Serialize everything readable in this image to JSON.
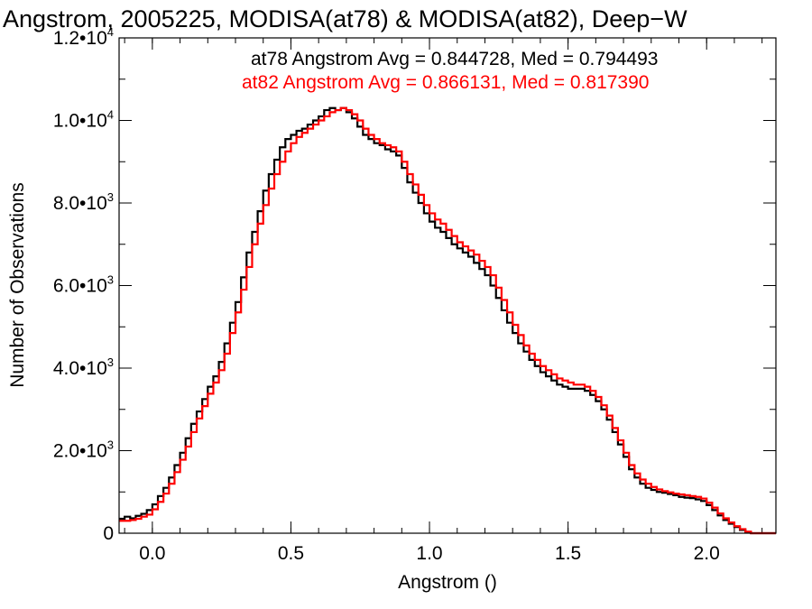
{
  "chart_data": {
    "type": "line",
    "title": "Angstrom, 2005225, MODISA(at78) & MODISA(at82), Deep−W",
    "xlabel": "Angstrom ()",
    "ylabel": "Number of Observations",
    "xlim": [
      -0.12,
      2.25
    ],
    "ylim": [
      0,
      12000
    ],
    "x_ticks": [
      {
        "value": 0.0,
        "label": "0.0"
      },
      {
        "value": 0.5,
        "label": "0.5"
      },
      {
        "value": 1.0,
        "label": "1.0"
      },
      {
        "value": 1.5,
        "label": "1.5"
      },
      {
        "value": 2.0,
        "label": "2.0"
      }
    ],
    "y_ticks": [
      {
        "value": 0,
        "label": "0",
        "exp": ""
      },
      {
        "value": 2000,
        "label": "2.0•10",
        "exp": "3"
      },
      {
        "value": 4000,
        "label": "4.0•10",
        "exp": "3"
      },
      {
        "value": 6000,
        "label": "6.0•10",
        "exp": "3"
      },
      {
        "value": 8000,
        "label": "8.0•10",
        "exp": "3"
      },
      {
        "value": 10000,
        "label": "1.0•10",
        "exp": "4"
      },
      {
        "value": 12000,
        "label": "1.2•10",
        "exp": "4"
      }
    ],
    "x_minor_step": 0.1,
    "y_minor_step": 1000,
    "annotations": [
      {
        "text": "at78 Angstrom Avg = 0.844728, Med = 0.794493",
        "color": "#000000"
      },
      {
        "text": "at82 Angstrom Avg = 0.866131, Med = 0.817390",
        "color": "#ff0000"
      }
    ],
    "series": [
      {
        "color": "#000000",
        "points": [
          [
            -0.12,
            350
          ],
          [
            -0.1,
            400
          ],
          [
            -0.08,
            360
          ],
          [
            -0.06,
            420
          ],
          [
            -0.04,
            470
          ],
          [
            -0.02,
            560
          ],
          [
            0.0,
            700
          ],
          [
            0.02,
            900
          ],
          [
            0.04,
            1100
          ],
          [
            0.06,
            1350
          ],
          [
            0.08,
            1650
          ],
          [
            0.1,
            1950
          ],
          [
            0.12,
            2300
          ],
          [
            0.14,
            2650
          ],
          [
            0.16,
            2950
          ],
          [
            0.18,
            3250
          ],
          [
            0.2,
            3550
          ],
          [
            0.22,
            3800
          ],
          [
            0.24,
            4150
          ],
          [
            0.26,
            4600
          ],
          [
            0.28,
            5100
          ],
          [
            0.3,
            5600
          ],
          [
            0.32,
            6200
          ],
          [
            0.34,
            6800
          ],
          [
            0.36,
            7300
          ],
          [
            0.38,
            7800
          ],
          [
            0.4,
            8300
          ],
          [
            0.42,
            8700
          ],
          [
            0.44,
            9050
          ],
          [
            0.46,
            9350
          ],
          [
            0.48,
            9550
          ],
          [
            0.5,
            9650
          ],
          [
            0.52,
            9750
          ],
          [
            0.54,
            9800
          ],
          [
            0.56,
            9900
          ],
          [
            0.58,
            10000
          ],
          [
            0.6,
            10100
          ],
          [
            0.62,
            10250
          ],
          [
            0.64,
            10300
          ],
          [
            0.66,
            10250
          ],
          [
            0.68,
            10300
          ],
          [
            0.7,
            10200
          ],
          [
            0.72,
            10050
          ],
          [
            0.74,
            9850
          ],
          [
            0.76,
            9650
          ],
          [
            0.78,
            9550
          ],
          [
            0.8,
            9450
          ],
          [
            0.82,
            9400
          ],
          [
            0.84,
            9300
          ],
          [
            0.86,
            9250
          ],
          [
            0.88,
            9150
          ],
          [
            0.9,
            8850
          ],
          [
            0.92,
            8500
          ],
          [
            0.94,
            8250
          ],
          [
            0.96,
            8000
          ],
          [
            0.98,
            7750
          ],
          [
            1.0,
            7550
          ],
          [
            1.02,
            7400
          ],
          [
            1.04,
            7300
          ],
          [
            1.06,
            7150
          ],
          [
            1.08,
            7000
          ],
          [
            1.1,
            6900
          ],
          [
            1.12,
            6800
          ],
          [
            1.14,
            6700
          ],
          [
            1.16,
            6550
          ],
          [
            1.18,
            6400
          ],
          [
            1.2,
            6250
          ],
          [
            1.22,
            6000
          ],
          [
            1.24,
            5700
          ],
          [
            1.26,
            5400
          ],
          [
            1.28,
            5100
          ],
          [
            1.3,
            4850
          ],
          [
            1.32,
            4600
          ],
          [
            1.34,
            4400
          ],
          [
            1.36,
            4200
          ],
          [
            1.38,
            4050
          ],
          [
            1.4,
            3900
          ],
          [
            1.42,
            3800
          ],
          [
            1.44,
            3700
          ],
          [
            1.46,
            3600
          ],
          [
            1.48,
            3550
          ],
          [
            1.5,
            3500
          ],
          [
            1.52,
            3500
          ],
          [
            1.54,
            3500
          ],
          [
            1.56,
            3450
          ],
          [
            1.58,
            3350
          ],
          [
            1.6,
            3200
          ],
          [
            1.62,
            3000
          ],
          [
            1.64,
            2750
          ],
          [
            1.66,
            2450
          ],
          [
            1.68,
            2150
          ],
          [
            1.7,
            1850
          ],
          [
            1.72,
            1550
          ],
          [
            1.74,
            1350
          ],
          [
            1.76,
            1200
          ],
          [
            1.78,
            1100
          ],
          [
            1.8,
            1050
          ],
          [
            1.82,
            1000
          ],
          [
            1.84,
            980
          ],
          [
            1.86,
            950
          ],
          [
            1.88,
            920
          ],
          [
            1.9,
            880
          ],
          [
            1.92,
            860
          ],
          [
            1.94,
            850
          ],
          [
            1.96,
            820
          ],
          [
            1.98,
            780
          ],
          [
            2.0,
            680
          ],
          [
            2.02,
            560
          ],
          [
            2.04,
            430
          ],
          [
            2.06,
            320
          ],
          [
            2.08,
            230
          ],
          [
            2.1,
            150
          ],
          [
            2.12,
            80
          ],
          [
            2.14,
            20
          ],
          [
            2.16,
            0
          ],
          [
            2.25,
            0
          ]
        ]
      },
      {
        "color": "#ff0000",
        "points": [
          [
            -0.12,
            300
          ],
          [
            -0.1,
            300
          ],
          [
            -0.08,
            320
          ],
          [
            -0.06,
            350
          ],
          [
            -0.04,
            400
          ],
          [
            -0.02,
            450
          ],
          [
            0.0,
            580
          ],
          [
            0.02,
            760
          ],
          [
            0.04,
            960
          ],
          [
            0.06,
            1200
          ],
          [
            0.08,
            1480
          ],
          [
            0.1,
            1780
          ],
          [
            0.12,
            2100
          ],
          [
            0.14,
            2450
          ],
          [
            0.16,
            2780
          ],
          [
            0.18,
            3080
          ],
          [
            0.2,
            3380
          ],
          [
            0.22,
            3650
          ],
          [
            0.24,
            3950
          ],
          [
            0.26,
            4350
          ],
          [
            0.28,
            4850
          ],
          [
            0.3,
            5350
          ],
          [
            0.32,
            5900
          ],
          [
            0.34,
            6450
          ],
          [
            0.36,
            7000
          ],
          [
            0.38,
            7500
          ],
          [
            0.4,
            7950
          ],
          [
            0.42,
            8350
          ],
          [
            0.44,
            8700
          ],
          [
            0.46,
            9000
          ],
          [
            0.48,
            9250
          ],
          [
            0.5,
            9450
          ],
          [
            0.52,
            9600
          ],
          [
            0.54,
            9700
          ],
          [
            0.56,
            9800
          ],
          [
            0.58,
            9900
          ],
          [
            0.6,
            10000
          ],
          [
            0.62,
            10100
          ],
          [
            0.64,
            10200
          ],
          [
            0.66,
            10250
          ],
          [
            0.68,
            10300
          ],
          [
            0.7,
            10250
          ],
          [
            0.72,
            10150
          ],
          [
            0.74,
            10000
          ],
          [
            0.76,
            9800
          ],
          [
            0.78,
            9650
          ],
          [
            0.8,
            9550
          ],
          [
            0.82,
            9450
          ],
          [
            0.84,
            9400
          ],
          [
            0.86,
            9350
          ],
          [
            0.88,
            9250
          ],
          [
            0.9,
            9000
          ],
          [
            0.92,
            8700
          ],
          [
            0.94,
            8450
          ],
          [
            0.96,
            8200
          ],
          [
            0.98,
            7950
          ],
          [
            1.0,
            7750
          ],
          [
            1.02,
            7600
          ],
          [
            1.04,
            7500
          ],
          [
            1.06,
            7350
          ],
          [
            1.08,
            7200
          ],
          [
            1.1,
            7050
          ],
          [
            1.12,
            6950
          ],
          [
            1.14,
            6850
          ],
          [
            1.16,
            6750
          ],
          [
            1.18,
            6600
          ],
          [
            1.2,
            6450
          ],
          [
            1.22,
            6250
          ],
          [
            1.24,
            5950
          ],
          [
            1.26,
            5650
          ],
          [
            1.28,
            5350
          ],
          [
            1.3,
            5050
          ],
          [
            1.32,
            4800
          ],
          [
            1.34,
            4550
          ],
          [
            1.36,
            4350
          ],
          [
            1.38,
            4200
          ],
          [
            1.4,
            4050
          ],
          [
            1.42,
            3950
          ],
          [
            1.44,
            3850
          ],
          [
            1.46,
            3750
          ],
          [
            1.48,
            3700
          ],
          [
            1.5,
            3650
          ],
          [
            1.52,
            3600
          ],
          [
            1.54,
            3600
          ],
          [
            1.56,
            3550
          ],
          [
            1.58,
            3450
          ],
          [
            1.6,
            3300
          ],
          [
            1.62,
            3100
          ],
          [
            1.64,
            2850
          ],
          [
            1.66,
            2550
          ],
          [
            1.68,
            2250
          ],
          [
            1.7,
            1950
          ],
          [
            1.72,
            1650
          ],
          [
            1.74,
            1450
          ],
          [
            1.76,
            1300
          ],
          [
            1.78,
            1200
          ],
          [
            1.8,
            1120
          ],
          [
            1.82,
            1060
          ],
          [
            1.84,
            1020
          ],
          [
            1.86,
            990
          ],
          [
            1.88,
            960
          ],
          [
            1.9,
            940
          ],
          [
            1.92,
            920
          ],
          [
            1.94,
            900
          ],
          [
            1.96,
            880
          ],
          [
            1.98,
            840
          ],
          [
            2.0,
            740
          ],
          [
            2.02,
            620
          ],
          [
            2.04,
            480
          ],
          [
            2.06,
            360
          ],
          [
            2.08,
            260
          ],
          [
            2.1,
            170
          ],
          [
            2.12,
            100
          ],
          [
            2.14,
            40
          ],
          [
            2.16,
            0
          ],
          [
            2.25,
            0
          ]
        ]
      }
    ]
  }
}
